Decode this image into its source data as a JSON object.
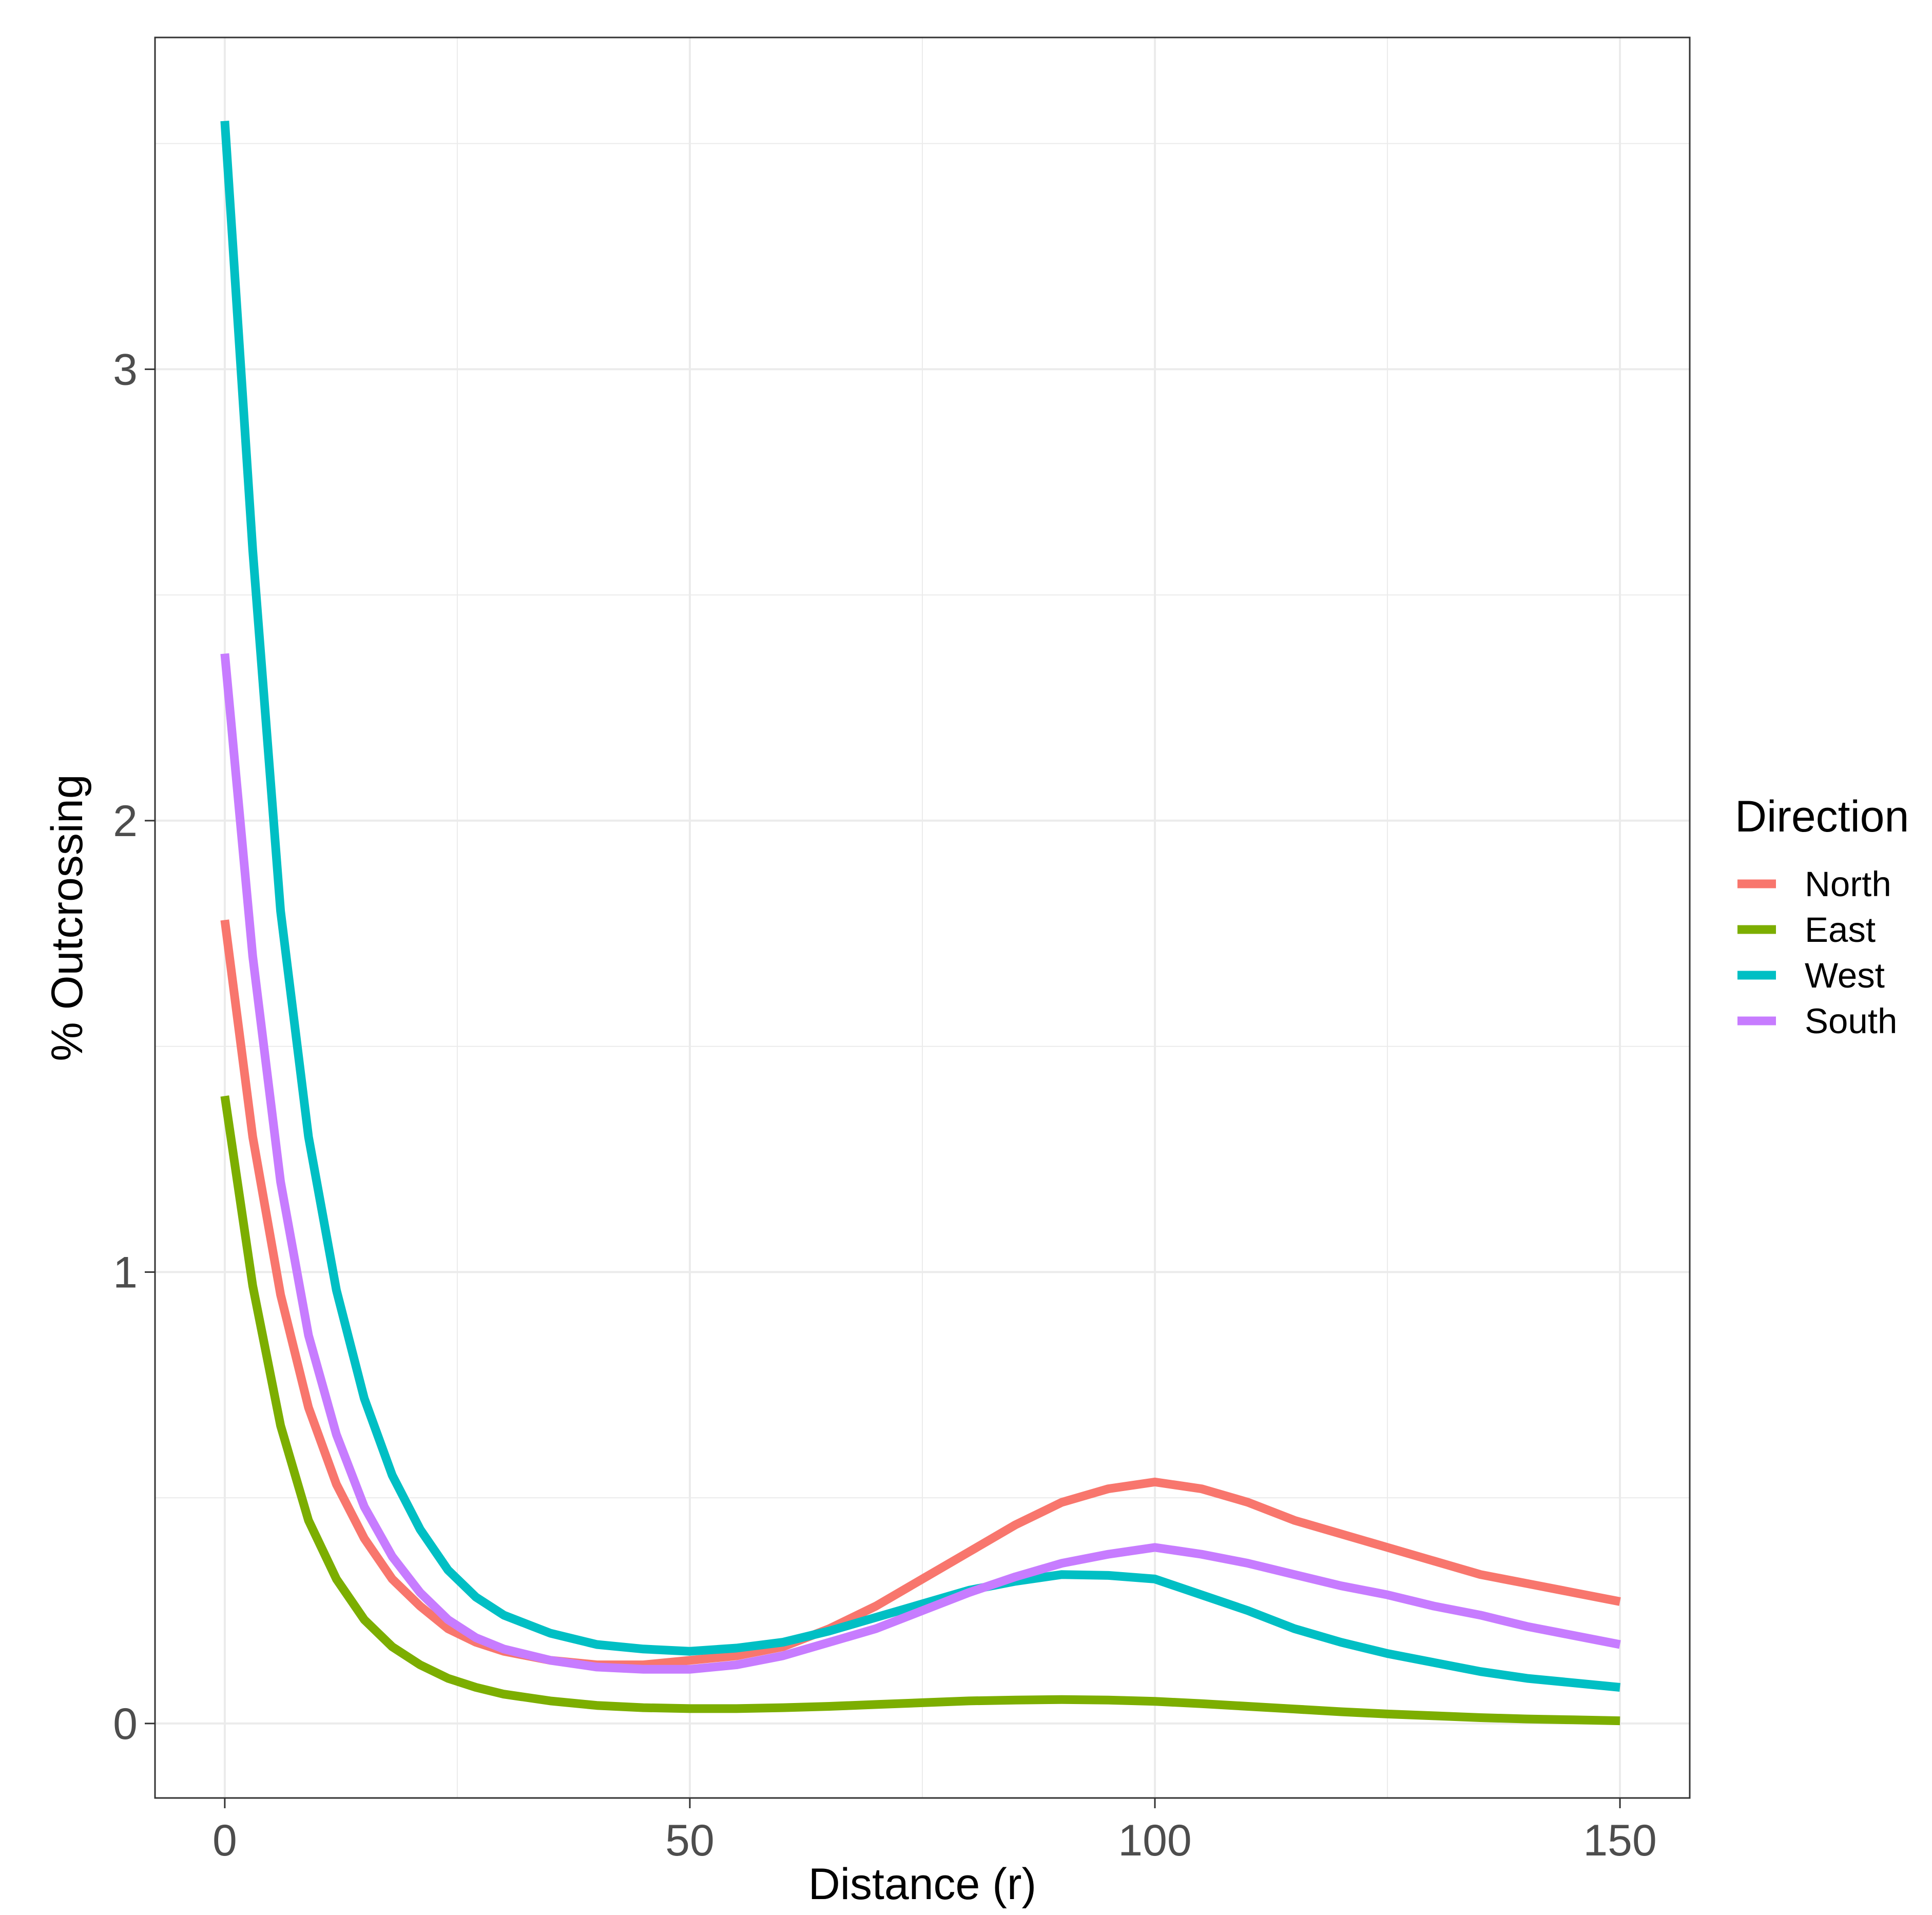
{
  "chart_data": {
    "type": "line",
    "xlabel": "Distance (r)",
    "ylabel": "% Outcrossing",
    "xlim": [
      -7.5,
      157.5
    ],
    "ylim": [
      -0.165,
      3.735
    ],
    "x_ticks": [
      0,
      50,
      100,
      150
    ],
    "y_ticks": [
      0,
      1,
      2,
      3
    ],
    "grid": true,
    "legend": {
      "title": "Direction",
      "position": "right"
    },
    "series": [
      {
        "name": "North",
        "color": "#F8766D",
        "x": [
          0,
          3,
          6,
          9,
          12,
          15,
          18,
          21,
          24,
          27,
          30,
          35,
          40,
          45,
          50,
          55,
          60,
          65,
          70,
          75,
          80,
          85,
          90,
          95,
          100,
          105,
          110,
          115,
          120,
          125,
          130,
          135,
          140,
          145,
          150
        ],
        "y": [
          1.78,
          1.3,
          0.95,
          0.7,
          0.53,
          0.41,
          0.32,
          0.26,
          0.21,
          0.18,
          0.16,
          0.14,
          0.13,
          0.13,
          0.14,
          0.15,
          0.17,
          0.21,
          0.26,
          0.32,
          0.38,
          0.44,
          0.49,
          0.52,
          0.535,
          0.52,
          0.49,
          0.45,
          0.42,
          0.39,
          0.36,
          0.33,
          0.31,
          0.29,
          0.27
        ]
      },
      {
        "name": "East",
        "color": "#7CAE00",
        "x": [
          0,
          3,
          6,
          9,
          12,
          15,
          18,
          21,
          24,
          27,
          30,
          35,
          40,
          45,
          50,
          55,
          60,
          65,
          70,
          75,
          80,
          85,
          90,
          95,
          100,
          105,
          110,
          115,
          120,
          125,
          130,
          135,
          140,
          145,
          150
        ],
        "y": [
          1.39,
          0.97,
          0.66,
          0.45,
          0.32,
          0.23,
          0.17,
          0.13,
          0.1,
          0.08,
          0.065,
          0.05,
          0.04,
          0.035,
          0.033,
          0.033,
          0.035,
          0.038,
          0.042,
          0.046,
          0.05,
          0.052,
          0.053,
          0.052,
          0.049,
          0.044,
          0.038,
          0.032,
          0.026,
          0.021,
          0.017,
          0.013,
          0.01,
          0.008,
          0.006
        ]
      },
      {
        "name": "West",
        "color": "#00BFC4",
        "x": [
          0,
          3,
          6,
          9,
          12,
          15,
          18,
          21,
          24,
          27,
          30,
          35,
          40,
          45,
          50,
          55,
          60,
          65,
          70,
          75,
          80,
          85,
          90,
          95,
          100,
          105,
          110,
          115,
          120,
          125,
          130,
          135,
          140,
          145,
          150
        ],
        "y": [
          3.55,
          2.6,
          1.8,
          1.3,
          0.96,
          0.72,
          0.55,
          0.43,
          0.34,
          0.28,
          0.24,
          0.2,
          0.175,
          0.165,
          0.16,
          0.167,
          0.18,
          0.205,
          0.235,
          0.265,
          0.295,
          0.315,
          0.33,
          0.328,
          0.32,
          0.285,
          0.25,
          0.21,
          0.18,
          0.155,
          0.135,
          0.115,
          0.1,
          0.09,
          0.08
        ]
      },
      {
        "name": "South",
        "color": "#C77CFF",
        "x": [
          0,
          3,
          6,
          9,
          12,
          15,
          18,
          21,
          24,
          27,
          30,
          35,
          40,
          45,
          50,
          55,
          60,
          65,
          70,
          75,
          80,
          85,
          90,
          95,
          100,
          105,
          110,
          115,
          120,
          125,
          130,
          135,
          140,
          145,
          150
        ],
        "y": [
          2.37,
          1.7,
          1.2,
          0.86,
          0.64,
          0.48,
          0.37,
          0.29,
          0.23,
          0.19,
          0.165,
          0.14,
          0.125,
          0.12,
          0.12,
          0.13,
          0.15,
          0.18,
          0.21,
          0.25,
          0.29,
          0.325,
          0.355,
          0.375,
          0.39,
          0.375,
          0.355,
          0.33,
          0.305,
          0.285,
          0.26,
          0.24,
          0.215,
          0.195,
          0.175
        ]
      }
    ]
  }
}
